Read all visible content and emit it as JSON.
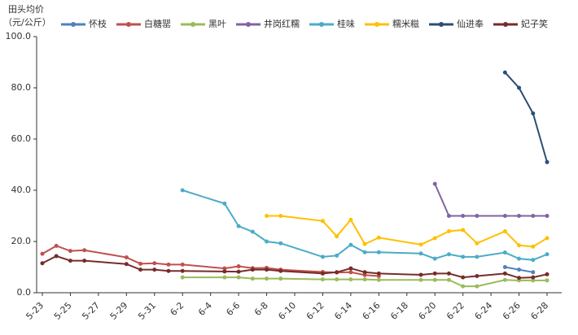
{
  "chart_data": {
    "type": "line",
    "ylabel": [
      "田头均价",
      "（元/公斤）"
    ],
    "categories": [
      "5-23",
      null,
      "5-25",
      null,
      "5-27",
      null,
      "5-29",
      null,
      "5-31",
      null,
      "6-2",
      null,
      "6-4",
      null,
      "6-6",
      null,
      "6-8",
      null,
      "6-10",
      null,
      "6-12",
      null,
      "6-14",
      null,
      "6-16",
      null,
      "6-18",
      null,
      "6-20",
      null,
      "6-22",
      null,
      "6-24",
      null,
      "6-26",
      null,
      "6-28"
    ],
    "ylim": [
      0,
      100
    ],
    "yticks": [
      {
        "value": 0,
        "label": "0.0"
      },
      {
        "value": 20,
        "label": "20.0"
      },
      {
        "value": 40,
        "label": "40.0"
      },
      {
        "value": 60,
        "label": "60.0"
      },
      {
        "value": 80,
        "label": "80.0"
      },
      {
        "value": 100,
        "label": "100.0"
      }
    ],
    "grid": false,
    "connect_gaps": true,
    "legend": "top",
    "series": [
      {
        "name": "怀枝",
        "color": "#4f81bd",
        "values": [
          null,
          null,
          null,
          null,
          null,
          null,
          null,
          null,
          null,
          null,
          null,
          null,
          null,
          null,
          null,
          null,
          null,
          null,
          null,
          null,
          null,
          null,
          null,
          null,
          null,
          null,
          null,
          null,
          null,
          null,
          null,
          null,
          null,
          10.0,
          9.0,
          8.0,
          null
        ]
      },
      {
        "name": "白糖罂",
        "color": "#c0504d",
        "values": [
          15.2,
          18.3,
          16.3,
          16.6,
          null,
          null,
          13.8,
          11.3,
          11.5,
          11.0,
          11.0,
          null,
          null,
          9.5,
          10.3,
          9.6,
          9.7,
          9.0,
          null,
          null,
          8.1,
          7.9,
          8.0,
          6.9,
          6.5,
          null,
          null,
          null,
          null,
          null,
          null,
          null,
          null,
          null,
          null,
          null,
          null
        ]
      },
      {
        "name": "黑叶",
        "color": "#9bbb59",
        "values": [
          null,
          null,
          null,
          null,
          null,
          null,
          null,
          null,
          null,
          null,
          6.0,
          null,
          null,
          6.0,
          6.0,
          5.5,
          5.5,
          5.5,
          null,
          null,
          5.2,
          5.2,
          5.2,
          5.2,
          5.0,
          null,
          null,
          5.0,
          5.0,
          5.0,
          2.5,
          2.5,
          null,
          5.0,
          4.8,
          4.8,
          4.8
        ]
      },
      {
        "name": "井岗红糯",
        "color": "#8064a2",
        "values": [
          null,
          null,
          null,
          null,
          null,
          null,
          null,
          null,
          null,
          null,
          null,
          null,
          null,
          null,
          null,
          null,
          null,
          null,
          null,
          null,
          null,
          null,
          null,
          null,
          null,
          null,
          null,
          null,
          42.5,
          30.0,
          30.0,
          30.0,
          null,
          30.0,
          30.0,
          30.0,
          30.0
        ]
      },
      {
        "name": "桂味",
        "color": "#4bacc6",
        "values": [
          null,
          null,
          null,
          null,
          null,
          null,
          null,
          null,
          null,
          null,
          40.0,
          null,
          null,
          34.8,
          26.0,
          23.8,
          20.0,
          19.3,
          null,
          null,
          14.0,
          14.5,
          18.7,
          15.8,
          15.8,
          null,
          null,
          15.3,
          13.3,
          15.0,
          14.0,
          14.0,
          null,
          15.7,
          13.3,
          12.8,
          15.0
        ]
      },
      {
        "name": "糯米糍",
        "color": "#ffc000",
        "values": [
          null,
          null,
          null,
          null,
          null,
          null,
          null,
          null,
          null,
          null,
          null,
          null,
          null,
          null,
          null,
          null,
          30.0,
          30.0,
          null,
          null,
          28.0,
          22.0,
          28.5,
          19.0,
          21.5,
          null,
          null,
          18.8,
          21.3,
          24.0,
          24.5,
          19.3,
          null,
          24.0,
          18.5,
          18.0,
          21.3
        ]
      },
      {
        "name": "仙进奉",
        "color": "#2c4d75",
        "values": [
          null,
          null,
          null,
          null,
          null,
          null,
          null,
          null,
          null,
          null,
          null,
          null,
          null,
          null,
          null,
          null,
          null,
          null,
          null,
          null,
          null,
          null,
          null,
          null,
          null,
          null,
          null,
          null,
          null,
          null,
          null,
          null,
          null,
          86.0,
          80.0,
          70.0,
          51.0
        ]
      },
      {
        "name": "妃子笑",
        "color": "#772c2a",
        "values": [
          11.5,
          14.3,
          12.5,
          12.5,
          null,
          null,
          11.2,
          9.0,
          9.0,
          8.5,
          8.5,
          null,
          null,
          8.3,
          8.2,
          9.0,
          9.0,
          8.5,
          null,
          null,
          7.5,
          8.0,
          9.5,
          8.0,
          7.5,
          null,
          null,
          7.0,
          7.5,
          7.5,
          6.0,
          6.5,
          null,
          7.5,
          5.8,
          6.0,
          7.2
        ]
      }
    ]
  }
}
